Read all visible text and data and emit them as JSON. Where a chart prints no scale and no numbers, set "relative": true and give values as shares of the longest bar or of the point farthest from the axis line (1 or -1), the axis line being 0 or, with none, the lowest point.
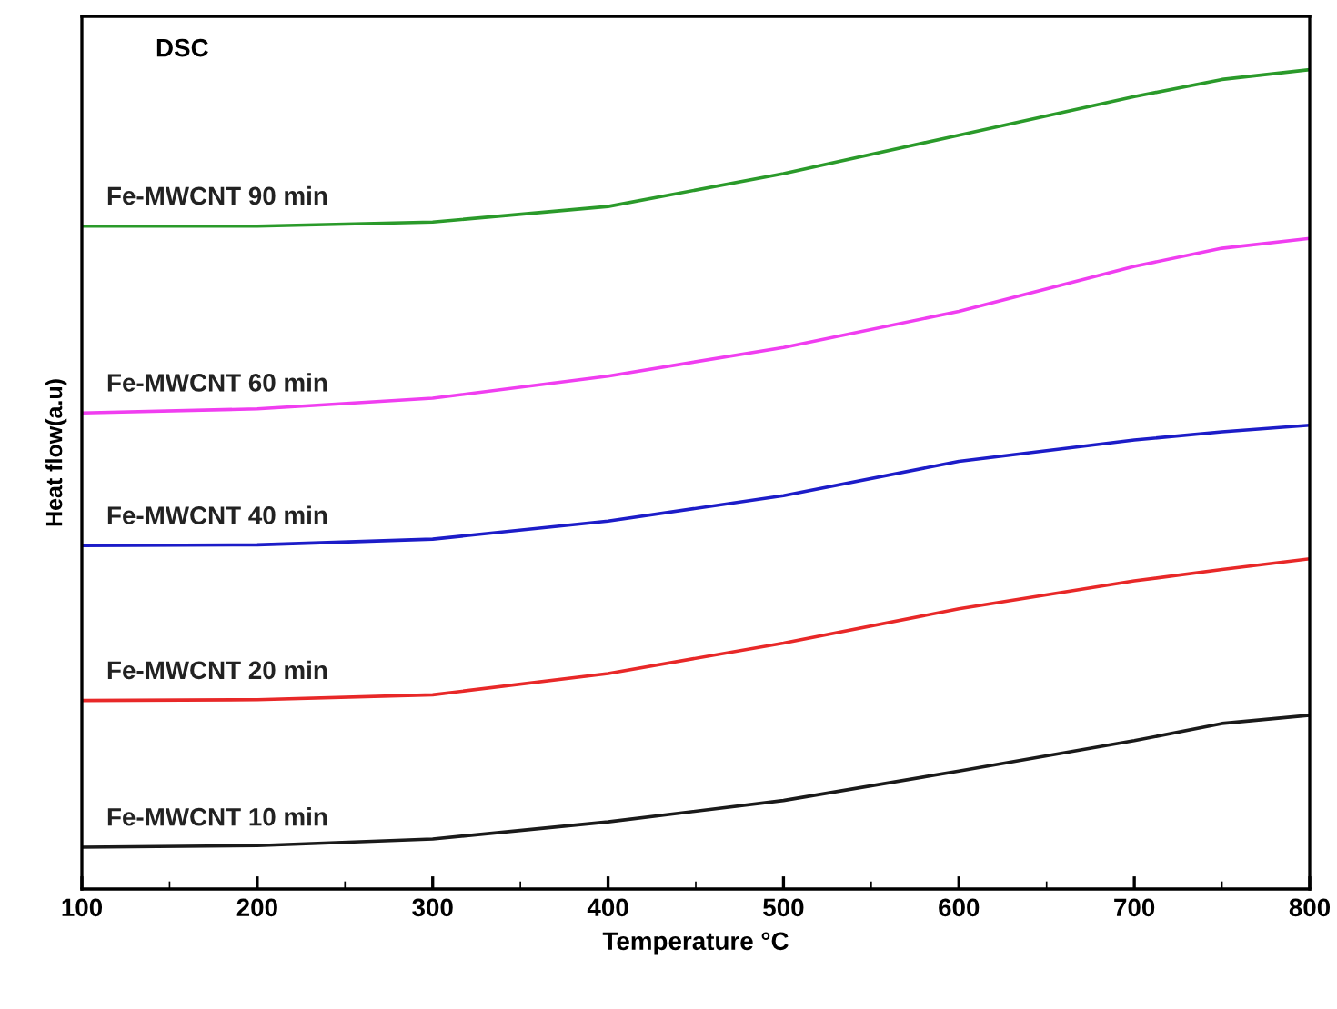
{
  "chart_data": {
    "type": "line",
    "title": "DSC",
    "xlabel": "Temperature °C",
    "ylabel": "Heat flow(a.u)",
    "relative": true,
    "xlim": [
      100,
      800
    ],
    "xticks": [
      100,
      200,
      300,
      400,
      500,
      600,
      700,
      800
    ],
    "grid": false,
    "legend": false,
    "marker": "none",
    "line_style": "solid",
    "x": [
      100,
      200,
      300,
      400,
      500,
      600,
      700,
      750,
      800
    ],
    "series": [
      {
        "name": "Fe-MWCNT 90 min",
        "color": "#2a9a2a",
        "values": [
          0.809,
          0.809,
          0.814,
          0.833,
          0.873,
          0.92,
          0.967,
          0.988,
          1.0
        ]
      },
      {
        "name": "Fe-MWCNT 60 min",
        "color": "#f03ef0",
        "values": [
          0.581,
          0.586,
          0.599,
          0.626,
          0.661,
          0.705,
          0.76,
          0.782,
          0.794
        ]
      },
      {
        "name": "Fe-MWCNT 40 min",
        "color": "#1c1cc8",
        "values": [
          0.419,
          0.42,
          0.427,
          0.449,
          0.48,
          0.522,
          0.548,
          0.558,
          0.566
        ]
      },
      {
        "name": "Fe-MWCNT 20 min",
        "color": "#e82828",
        "values": [
          0.23,
          0.231,
          0.237,
          0.263,
          0.3,
          0.342,
          0.376,
          0.39,
          0.403
        ]
      },
      {
        "name": "Fe-MWCNT 10 min",
        "color": "#1a1a1a",
        "values": [
          0.051,
          0.053,
          0.061,
          0.082,
          0.108,
          0.144,
          0.181,
          0.202,
          0.212
        ]
      }
    ]
  }
}
